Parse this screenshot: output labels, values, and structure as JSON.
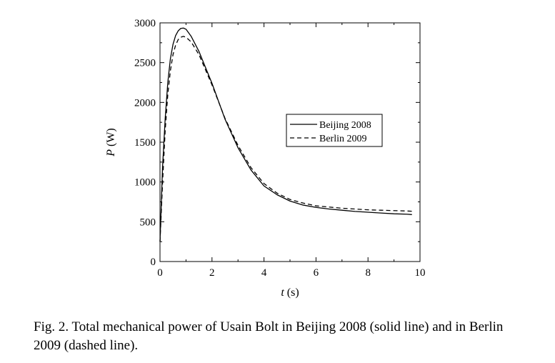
{
  "caption": "Fig. 2. Total mechanical power of Usain Bolt in Beijing 2008 (solid line) and in Berlin 2009 (dashed line).",
  "chart_data": {
    "type": "line",
    "title": "",
    "xlabel_var": "t",
    "xlabel_unit": " (s)",
    "ylabel_var": "P",
    "ylabel_unit": " (W)",
    "xlim": [
      0,
      10
    ],
    "ylim": [
      0,
      3000
    ],
    "x_ticks": [
      0,
      2,
      4,
      6,
      8,
      10
    ],
    "y_ticks": [
      0,
      500,
      1000,
      1500,
      2000,
      2500,
      3000
    ],
    "grid": false,
    "legend_position": "center-right",
    "series": [
      {
        "name": "Beijing 2008",
        "style": "solid",
        "color": "#000000",
        "x": [
          0,
          0.1,
          0.2,
          0.3,
          0.4,
          0.5,
          0.6,
          0.7,
          0.8,
          0.9,
          1.0,
          1.2,
          1.5,
          2.0,
          2.5,
          3.0,
          3.5,
          4.0,
          4.5,
          5.0,
          5.5,
          6.0,
          6.5,
          7.0,
          7.5,
          8.0,
          8.5,
          9.0,
          9.5,
          9.69
        ],
        "y": [
          250,
          1200,
          1800,
          2250,
          2550,
          2730,
          2840,
          2900,
          2930,
          2935,
          2920,
          2830,
          2640,
          2240,
          1790,
          1430,
          1150,
          950,
          840,
          760,
          710,
          680,
          660,
          645,
          630,
          620,
          610,
          600,
          595,
          590
        ]
      },
      {
        "name": "Berlin 2009",
        "style": "dashed",
        "color": "#000000",
        "x": [
          0,
          0.1,
          0.2,
          0.3,
          0.4,
          0.5,
          0.6,
          0.7,
          0.8,
          0.9,
          1.0,
          1.2,
          1.5,
          2.0,
          2.5,
          3.0,
          3.5,
          4.0,
          4.5,
          5.0,
          5.5,
          6.0,
          6.5,
          7.0,
          7.5,
          8.0,
          8.5,
          9.0,
          9.5,
          9.69
        ],
        "y": [
          250,
          1000,
          1650,
          2100,
          2400,
          2600,
          2720,
          2790,
          2820,
          2830,
          2820,
          2760,
          2600,
          2220,
          1800,
          1460,
          1180,
          980,
          860,
          780,
          735,
          700,
          685,
          670,
          660,
          650,
          645,
          640,
          635,
          632
        ]
      }
    ]
  }
}
